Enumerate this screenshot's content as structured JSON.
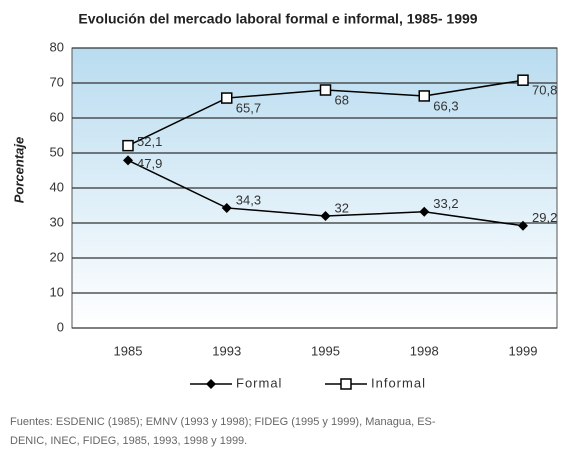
{
  "chart_data": {
    "type": "line",
    "title": "Evolución del mercado laboral formal e informal, 1985- 1999",
    "y_label": "Porcentaje",
    "categories": [
      "1985",
      "1993",
      "1995",
      "1998",
      "1999"
    ],
    "series": [
      {
        "name": "Formal",
        "color": "#000000",
        "marker": "diamond",
        "values": [
          47.9,
          34.3,
          32,
          33.2,
          29.2
        ],
        "value_labels": [
          "47,9",
          "34,3",
          "32",
          "33,2",
          "29,2"
        ]
      },
      {
        "name": "Informal",
        "color": "#000000",
        "marker": "square",
        "values": [
          52.1,
          65.7,
          68,
          66.3,
          70.8
        ],
        "value_labels": [
          "52,1",
          "65,7",
          "68",
          "66,3",
          "70,8"
        ]
      }
    ],
    "ylim": [
      0,
      80
    ],
    "yticks": [
      0,
      10,
      20,
      30,
      40,
      50,
      60,
      70,
      80
    ],
    "grid": true,
    "legend": "bottom",
    "source": [
      "Fuentes: ESDENIC (1985); EMNV (1993 y 1998); FIDEG (1995 y 1999), Managua, ES-",
      "DENIC, INEC, FIDEG, 1985, 1993, 1998 y 1999."
    ]
  }
}
